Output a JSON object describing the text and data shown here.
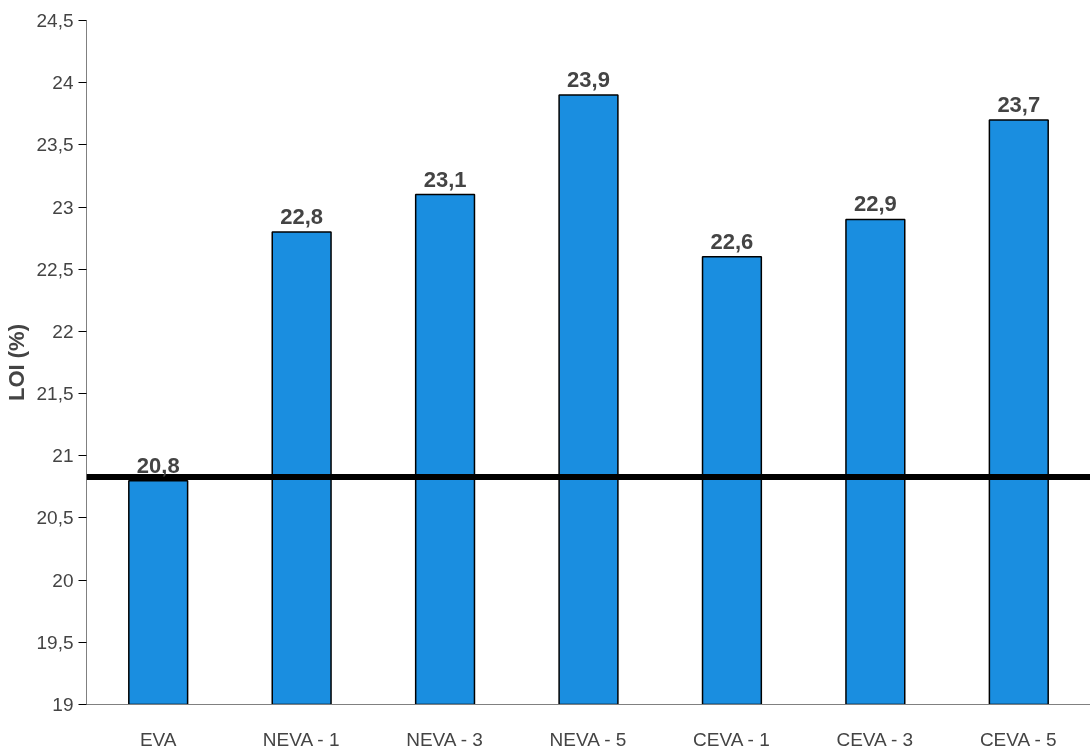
{
  "chart_data": {
    "type": "bar",
    "ylabel": "LOI (%)",
    "categories": [
      "EVA",
      "NEVA - 1",
      "NEVA - 3",
      "NEVA - 5",
      "CEVA - 1",
      "CEVA - 3",
      "CEVA - 5"
    ],
    "values": [
      20.8,
      22.8,
      23.1,
      23.9,
      22.6,
      22.9,
      23.7
    ],
    "value_labels": [
      "20,8",
      "22,8",
      "23,1",
      "23,9",
      "22,6",
      "22,9",
      "23,7"
    ],
    "color": "#1a8ee0",
    "ylim": [
      19,
      24.5
    ],
    "yticks": [
      19,
      {
        "value": 19.5,
        "label": "19,5"
      },
      20,
      {
        "value": 20.5,
        "label": "20,5"
      },
      21,
      {
        "value": 21.5,
        "label": "21,5"
      },
      22,
      {
        "value": 22.5,
        "label": "22,5"
      },
      23,
      {
        "value": 23.5,
        "label": "23,5"
      },
      24,
      {
        "value": 24.5,
        "label": "24,5"
      }
    ],
    "ref_lines": [
      {
        "axis": "y",
        "value": 20.83,
        "color": "#000000"
      }
    ],
    "grid": false
  }
}
